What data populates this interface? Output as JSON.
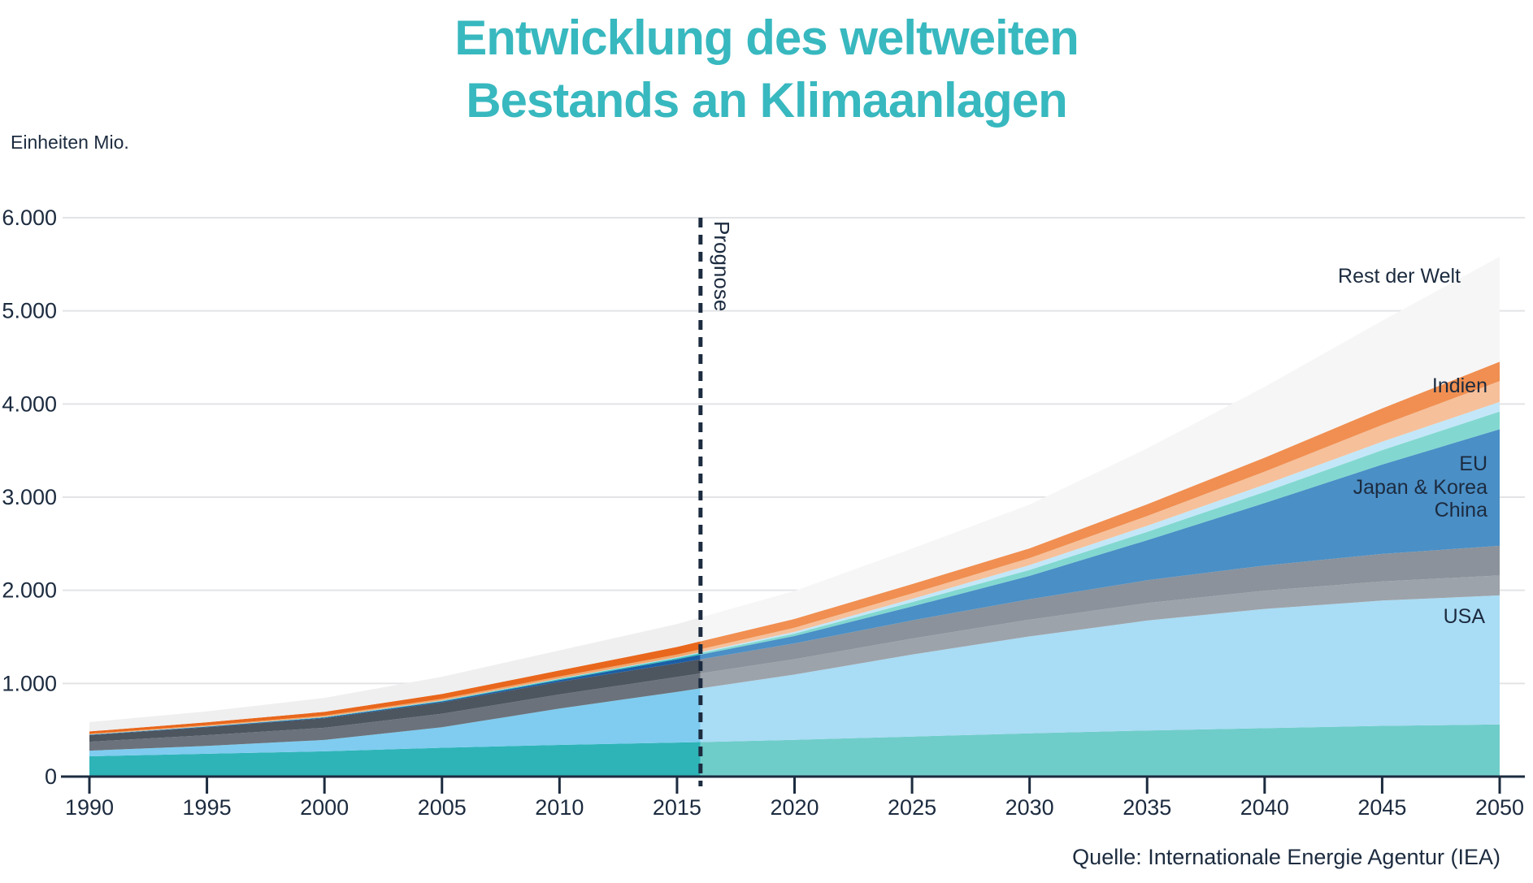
{
  "title": {
    "line1": "Entwicklung des weltweiten",
    "line2": "Bestands an Klimaanlagen",
    "color": "#38b8bf"
  },
  "text_color": "#1c2b3f",
  "gridline_color": "#e3e4e6",
  "y_axis": {
    "unit_label": "Einheiten Mio.",
    "ticks": [
      {
        "value": 6000,
        "label": "6.000"
      },
      {
        "value": 5000,
        "label": "5.000"
      },
      {
        "value": 4000,
        "label": "4.000"
      },
      {
        "value": 3000,
        "label": "3.000"
      },
      {
        "value": 2000,
        "label": "2.000"
      },
      {
        "value": 1000,
        "label": "1.000"
      },
      {
        "value": 0,
        "label": "0"
      }
    ]
  },
  "x_axis": {
    "ticks": [
      {
        "value": 1990,
        "label": "1990"
      },
      {
        "value": 1995,
        "label": "1995"
      },
      {
        "value": 2000,
        "label": "2000"
      },
      {
        "value": 2005,
        "label": "2005"
      },
      {
        "value": 2010,
        "label": "2010"
      },
      {
        "value": 2015,
        "label": "2015"
      },
      {
        "value": 2020,
        "label": "2020"
      },
      {
        "value": 2025,
        "label": "2025"
      },
      {
        "value": 2030,
        "label": "2030"
      },
      {
        "value": 2035,
        "label": "2035"
      },
      {
        "value": 2040,
        "label": "2040"
      },
      {
        "value": 2045,
        "label": "2045"
      },
      {
        "value": 2050,
        "label": "2050"
      }
    ]
  },
  "prognose": {
    "label": "Prognose",
    "year": 2016
  },
  "source": "Quelle: Internationale Energie Agentur (IEA)",
  "chart_data": {
    "type": "area",
    "stacked": true,
    "title": "Entwicklung des weltweiten Bestands an Klimaanlagen",
    "ylabel": "Einheiten Mio.",
    "xlim": [
      1990,
      2050
    ],
    "ylim": [
      0,
      6000
    ],
    "grid": true,
    "forecast_from": 2016,
    "x": [
      1990,
      1995,
      2000,
      2005,
      2010,
      2015,
      2020,
      2025,
      2030,
      2035,
      2040,
      2045,
      2050
    ],
    "series": [
      {
        "name": "USA",
        "color_hist": "#2eb4b7",
        "color_forecast": "#6fcdc9",
        "values": [
          218,
          245,
          271,
          310,
          340,
          365,
          395,
          430,
          465,
          495,
          520,
          545,
          560
        ]
      },
      {
        "name": "China",
        "color_hist": "#7fccf0",
        "color_forecast": "#a9dcf5",
        "values": [
          60,
          85,
          122,
          220,
          390,
          545,
          700,
          880,
          1040,
          1180,
          1280,
          1345,
          1386
        ]
      },
      {
        "name": "Japan & Korea",
        "color_hist": "#6b727b",
        "color_forecast": "#9da3aa",
        "values": [
          96,
          115,
          131,
          145,
          152,
          159,
          165,
          172,
          180,
          188,
          196,
          205,
          213
        ]
      },
      {
        "name": "EU",
        "color_hist": "#4d555f",
        "color_forecast": "#8b929b",
        "values": [
          70,
          85,
          102,
          120,
          135,
          148,
          170,
          195,
          220,
          245,
          270,
          295,
          319
        ]
      },
      {
        "name": "Indien",
        "color_hist": "#1a5ea6",
        "color_forecast": "#4a8fc6",
        "values": [
          5,
          6,
          8,
          12,
          20,
          42,
          80,
          150,
          250,
          430,
          670,
          960,
          1251
        ]
      },
      {
        "name": "",
        "color_hist": "#3ec2b9",
        "color_forecast": "#82d8d0",
        "values": [
          2,
          3,
          4,
          6,
          10,
          14,
          25,
          45,
          64,
          90,
          120,
          155,
          190
        ]
      },
      {
        "name": "",
        "color_hist": "#b4e0f5",
        "color_forecast": "#c3e7f8",
        "values": [
          1,
          2,
          3,
          4,
          6,
          9,
          18,
          35,
          52,
          65,
          78,
          90,
          103
        ]
      },
      {
        "name": "",
        "color_hist": "#f0a870",
        "color_forecast": "#f6c09b",
        "values": [
          8,
          10,
          14,
          18,
          22,
          28,
          45,
          60,
          75,
          105,
          140,
          180,
          224
        ]
      },
      {
        "name": "",
        "color_hist": "#e8671c",
        "color_forecast": "#f08f51",
        "values": [
          25,
          32,
          40,
          52,
          65,
          82,
          95,
          100,
          105,
          125,
          150,
          178,
          209
        ]
      },
      {
        "name": "Rest der Welt",
        "color_hist": "#efeff0",
        "color_forecast": "#f6f6f7",
        "values": [
          100,
          117,
          150,
          185,
          215,
          245,
          300,
          380,
          470,
          600,
          760,
          940,
          1126
        ]
      }
    ]
  }
}
